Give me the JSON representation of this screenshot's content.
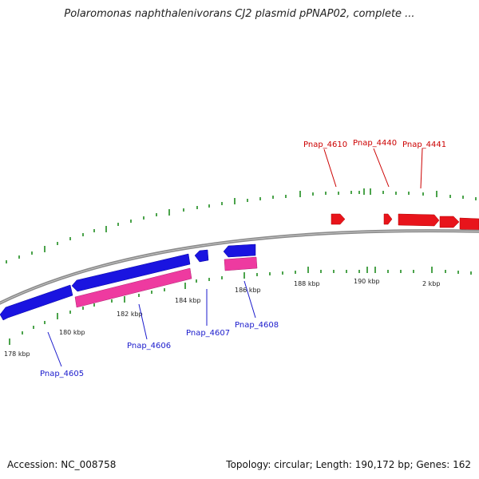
{
  "title": "Polaromonas naphthalenivorans CJ2 plasmid pPNAP02, complete ...",
  "footer": {
    "accession": "Accession: NC_008758",
    "summary": "Topology: circular; Length: 190,172 bp; Genes: 162"
  },
  "colors": {
    "forward_gene": "#e8141b",
    "reverse_gene": "#1a14e0",
    "rna_feature": "#ee3aa0",
    "tick": "#1e8c1e",
    "backbone": "#8a8a8a",
    "forward_label": "#cc0000",
    "reverse_label": "#1a1acc"
  },
  "tick_labels": [
    "178 kbp",
    "180 kbp",
    "182 kbp",
    "184 kbp",
    "186 kbp",
    "188 kbp",
    "190 kbp",
    "2 kbp"
  ],
  "gene_labels": {
    "forward": [
      "Pnap_4610",
      "Pnap_4440",
      "Pnap_4441"
    ],
    "reverse": [
      "Pnap_4605",
      "Pnap_4606",
      "Pnap_4607",
      "Pnap_4608"
    ]
  }
}
